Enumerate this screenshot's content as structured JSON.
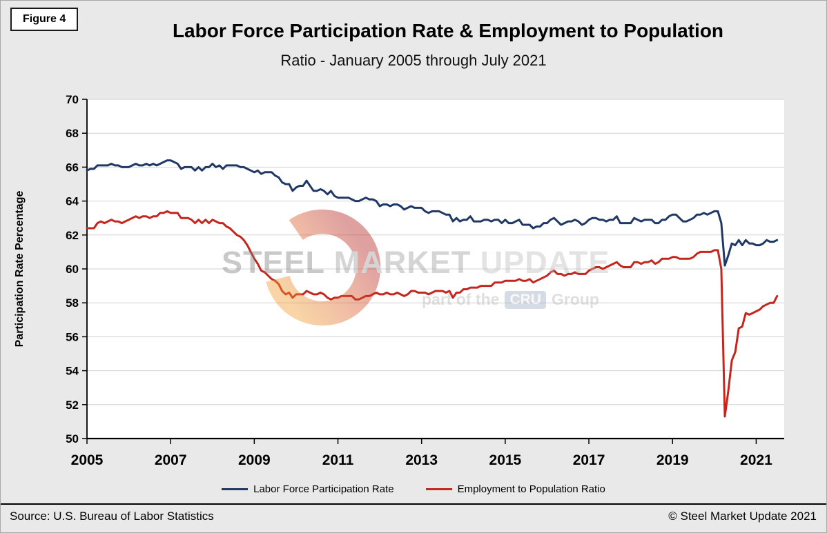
{
  "figure_label": "Figure 4",
  "title": "Labor Force Participation Rate & Employment to Population",
  "subtitle": "Ratio - January 2005 through July 2021",
  "source": "Source: U.S. Bureau  of Labor Statistics",
  "copyright": "© Steel Market Update 2021",
  "watermark": {
    "word1": "STEEL",
    "word2": "MARKET",
    "word3": "UPDATE",
    "tagline_prefix": "part of the",
    "tagline_box": "CRU",
    "tagline_suffix": "Group"
  },
  "colors": {
    "lfpr_line": "#203864",
    "epop_line": "#c4261d",
    "gridline": "#d2d2d2",
    "plot_bg": "#ffffff",
    "axis": "#000000"
  },
  "chart_data": {
    "type": "line",
    "title": "Labor Force Participation Rate & Employment to Population",
    "subtitle": "Ratio - January 2005 through July 2021",
    "xlabel": "",
    "ylabel": "Participation Rate Percentage",
    "ylim": [
      50,
      70
    ],
    "ytick_step": 2,
    "x_start": {
      "year": 2005,
      "month": 1
    },
    "x_end": {
      "year": 2021,
      "month": 7
    },
    "xticks": [
      2005,
      2007,
      2009,
      2011,
      2013,
      2015,
      2017,
      2019,
      2021
    ],
    "grid": "horizontal",
    "legend_position": "bottom",
    "series": [
      {
        "name": "Labor Force Participation Rate",
        "color": "#203864",
        "values": [
          65.8,
          65.9,
          65.9,
          66.1,
          66.1,
          66.1,
          66.1,
          66.2,
          66.1,
          66.1,
          66.0,
          66.0,
          66.0,
          66.1,
          66.2,
          66.1,
          66.1,
          66.2,
          66.1,
          66.2,
          66.1,
          66.2,
          66.3,
          66.4,
          66.4,
          66.3,
          66.2,
          65.9,
          66.0,
          66.0,
          66.0,
          65.8,
          66.0,
          65.8,
          66.0,
          66.0,
          66.2,
          66.0,
          66.1,
          65.9,
          66.1,
          66.1,
          66.1,
          66.1,
          66.0,
          66.0,
          65.9,
          65.8,
          65.7,
          65.8,
          65.6,
          65.7,
          65.7,
          65.7,
          65.5,
          65.4,
          65.1,
          65.0,
          65.0,
          64.6,
          64.8,
          64.9,
          64.9,
          65.2,
          64.9,
          64.6,
          64.6,
          64.7,
          64.6,
          64.4,
          64.6,
          64.3,
          64.2,
          64.2,
          64.2,
          64.2,
          64.1,
          64.0,
          64.0,
          64.1,
          64.2,
          64.1,
          64.1,
          64.0,
          63.7,
          63.8,
          63.8,
          63.7,
          63.8,
          63.8,
          63.7,
          63.5,
          63.6,
          63.7,
          63.6,
          63.6,
          63.6,
          63.4,
          63.3,
          63.4,
          63.4,
          63.4,
          63.3,
          63.2,
          63.2,
          62.8,
          63.0,
          62.8,
          62.9,
          62.9,
          63.1,
          62.8,
          62.8,
          62.8,
          62.9,
          62.9,
          62.8,
          62.9,
          62.9,
          62.7,
          62.9,
          62.7,
          62.7,
          62.8,
          62.9,
          62.6,
          62.6,
          62.6,
          62.4,
          62.5,
          62.5,
          62.7,
          62.7,
          62.9,
          63.0,
          62.8,
          62.6,
          62.7,
          62.8,
          62.8,
          62.9,
          62.8,
          62.6,
          62.7,
          62.9,
          63.0,
          63.0,
          62.9,
          62.9,
          62.8,
          62.9,
          62.9,
          63.1,
          62.7,
          62.7,
          62.7,
          62.7,
          63.0,
          62.9,
          62.8,
          62.9,
          62.9,
          62.9,
          62.7,
          62.7,
          62.9,
          62.9,
          63.1,
          63.2,
          63.2,
          63.0,
          62.8,
          62.8,
          62.9,
          63.0,
          63.2,
          63.2,
          63.3,
          63.2,
          63.3,
          63.4,
          63.4,
          62.7,
          60.2,
          60.8,
          61.5,
          61.4,
          61.7,
          61.4,
          61.7,
          61.5,
          61.5,
          61.4,
          61.4,
          61.5,
          61.7,
          61.6,
          61.6,
          61.7
        ]
      },
      {
        "name": "Employment to Population Ratio",
        "color": "#c4261d",
        "values": [
          62.4,
          62.4,
          62.4,
          62.7,
          62.8,
          62.7,
          62.8,
          62.9,
          62.8,
          62.8,
          62.7,
          62.8,
          62.9,
          63.0,
          63.1,
          63.0,
          63.1,
          63.1,
          63.0,
          63.1,
          63.1,
          63.3,
          63.3,
          63.4,
          63.3,
          63.3,
          63.3,
          63.0,
          63.0,
          63.0,
          62.9,
          62.7,
          62.9,
          62.7,
          62.9,
          62.7,
          62.9,
          62.8,
          62.7,
          62.7,
          62.5,
          62.4,
          62.2,
          62.0,
          61.9,
          61.7,
          61.4,
          61.0,
          60.6,
          60.3,
          59.9,
          59.8,
          59.6,
          59.4,
          59.3,
          59.1,
          58.7,
          58.5,
          58.6,
          58.3,
          58.5,
          58.5,
          58.5,
          58.7,
          58.6,
          58.5,
          58.5,
          58.6,
          58.5,
          58.3,
          58.2,
          58.3,
          58.3,
          58.4,
          58.4,
          58.4,
          58.4,
          58.2,
          58.2,
          58.3,
          58.4,
          58.4,
          58.5,
          58.6,
          58.5,
          58.5,
          58.6,
          58.5,
          58.5,
          58.6,
          58.5,
          58.4,
          58.5,
          58.7,
          58.7,
          58.6,
          58.6,
          58.6,
          58.5,
          58.6,
          58.7,
          58.7,
          58.7,
          58.6,
          58.7,
          58.3,
          58.6,
          58.6,
          58.8,
          58.8,
          58.9,
          58.9,
          58.9,
          59.0,
          59.0,
          59.0,
          59.0,
          59.2,
          59.2,
          59.2,
          59.3,
          59.3,
          59.3,
          59.3,
          59.4,
          59.3,
          59.3,
          59.4,
          59.2,
          59.3,
          59.4,
          59.5,
          59.6,
          59.8,
          59.9,
          59.7,
          59.7,
          59.6,
          59.7,
          59.7,
          59.8,
          59.7,
          59.7,
          59.7,
          59.9,
          60.0,
          60.1,
          60.1,
          60.0,
          60.1,
          60.2,
          60.3,
          60.4,
          60.2,
          60.1,
          60.1,
          60.1,
          60.4,
          60.4,
          60.3,
          60.4,
          60.4,
          60.5,
          60.3,
          60.4,
          60.6,
          60.6,
          60.6,
          60.7,
          60.7,
          60.6,
          60.6,
          60.6,
          60.6,
          60.7,
          60.9,
          61.0,
          61.0,
          61.0,
          61.0,
          61.1,
          61.1,
          60.0,
          51.3,
          52.8,
          54.6,
          55.1,
          56.5,
          56.6,
          57.4,
          57.3,
          57.4,
          57.5,
          57.6,
          57.8,
          57.9,
          58.0,
          58.0,
          58.4
        ]
      }
    ]
  }
}
